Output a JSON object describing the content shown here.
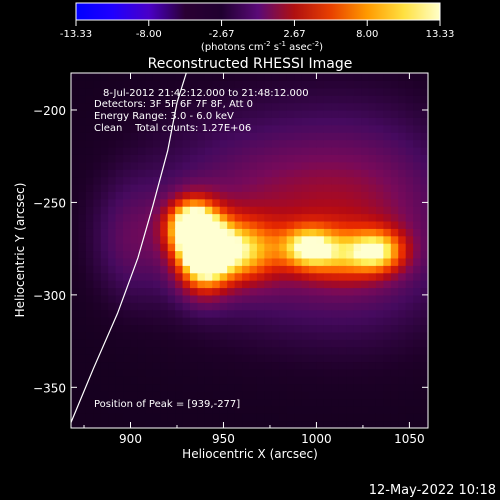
{
  "colorbar": {
    "ticks": [
      "-13.33",
      "-8.00",
      "-2.67",
      "2.67",
      "8.00",
      "13.33"
    ],
    "tick_values": [
      -13.33,
      -8.0,
      -2.67,
      2.67,
      8.0,
      13.33
    ],
    "unit_parts": [
      "(photons cm",
      "-2",
      " s",
      "-1",
      " asec",
      "-2",
      ")"
    ],
    "stops": [
      "#0000ff",
      "#1f00ff",
      "#4a00c8",
      "#2a0033",
      "#200030",
      "#5a0a78",
      "#b01010",
      "#e84000",
      "#ff9a00",
      "#ffe040",
      "#ffffc8"
    ]
  },
  "annotations": [
    "8-Jul-2012 21:42:12.000 to 21:48:12.000",
    "Detectors: 3F 5F 6F 7F 8F, Att 0",
    "Energy Range: 3.0 - 6.0 keV",
    "Clean    Total counts: 1.27E+06"
  ],
  "peak_text": "Position of Peak = [939,-277]",
  "date_stamp": "12-May-2022 10:18",
  "chart_data": {
    "type": "heatmap",
    "title": "Reconstructed RHESSI Image",
    "xlabel": "Heliocentric X (arcsec)",
    "ylabel": "Heliocentric Y (arcsec)",
    "xlim": [
      868,
      1060
    ],
    "ylim": [
      -372,
      -180
    ],
    "xticks": [
      900,
      950,
      1000,
      1050
    ],
    "yticks": [
      -200,
      -250,
      -300,
      -350
    ],
    "peak": [
      939,
      -277
    ],
    "sources": [
      {
        "x": 939,
        "y": -277,
        "sx": 10,
        "sy": 14,
        "amp": 13.3
      },
      {
        "x": 932,
        "y": -262,
        "sx": 9,
        "sy": 10,
        "amp": 9.5
      },
      {
        "x": 960,
        "y": -276,
        "sx": 14,
        "sy": 12,
        "amp": 7.5
      },
      {
        "x": 995,
        "y": -274,
        "sx": 10,
        "sy": 8,
        "amp": 6.6
      },
      {
        "x": 1034,
        "y": -276,
        "sx": 10,
        "sy": 8,
        "amp": 6.4
      },
      {
        "x": 1015,
        "y": -278,
        "sx": 16,
        "sy": 10,
        "amp": 5.2
      },
      {
        "x": 970,
        "y": -258,
        "sx": 45,
        "sy": 38,
        "amp": 3.8
      },
      {
        "x": 1030,
        "y": -260,
        "sx": 35,
        "sy": 40,
        "amp": 3.3
      },
      {
        "x": 900,
        "y": -270,
        "sx": 14,
        "sy": 22,
        "amp": 2.2
      }
    ],
    "limb": [
      [
        868,
        -369
      ],
      [
        880,
        -340
      ],
      [
        893,
        -310
      ],
      [
        904,
        -280
      ],
      [
        912,
        -252
      ],
      [
        920,
        -222
      ],
      [
        925,
        -196
      ],
      [
        930,
        -180
      ]
    ]
  }
}
